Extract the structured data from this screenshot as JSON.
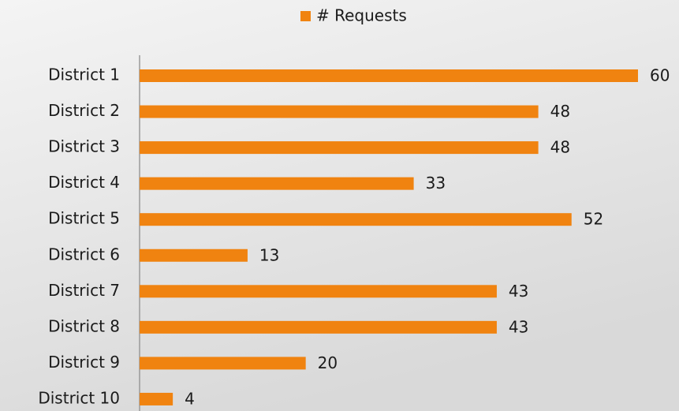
{
  "chart_data": {
    "type": "bar",
    "orientation": "horizontal",
    "categories": [
      "District 1",
      "District 2",
      "District 3",
      "District 4",
      "District 5",
      "District 6",
      "District 7",
      "District 8",
      "District 9",
      "District 10"
    ],
    "series": [
      {
        "name": "# Requests",
        "color": "#f08310",
        "values": [
          60,
          48,
          48,
          33,
          52,
          13,
          43,
          43,
          20,
          4
        ]
      }
    ],
    "legend": "top"
  }
}
